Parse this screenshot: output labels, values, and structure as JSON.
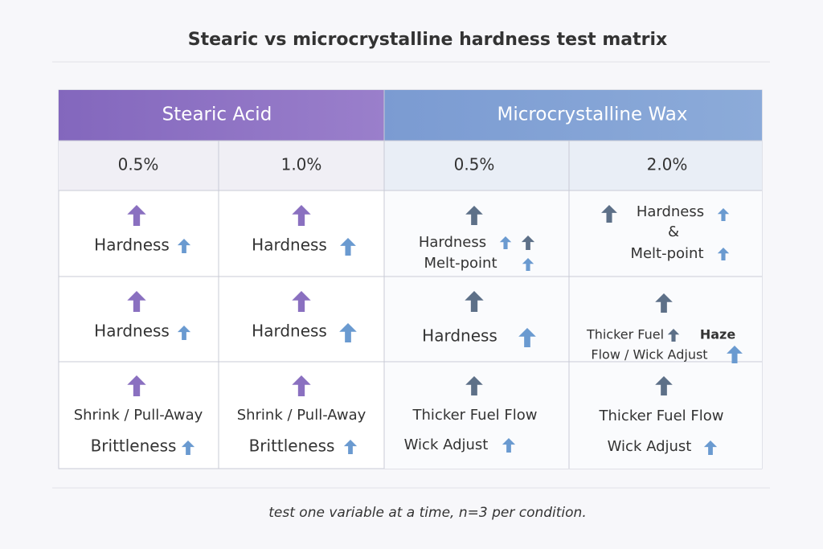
{
  "header": {
    "title": "Stearic vs microcrystalline hardness test matrix"
  },
  "table": {
    "groups": [
      "Stearic Acid",
      "Microcrystalline Wax"
    ],
    "columns": [
      "0.5%",
      "1.0%",
      "0.5%",
      "2.0%"
    ],
    "rows": [
      [
        [
          "Hardness"
        ],
        [
          "Hardness"
        ],
        [
          "Hardness",
          "Melt-point"
        ],
        [
          "Hardness",
          "&",
          "Melt-point"
        ]
      ],
      [
        [
          "Hardness"
        ],
        [
          "Hardness"
        ],
        [
          "Hardness"
        ],
        [
          "Thicker Fuel",
          "Haze",
          "Flow / Wick Adjust"
        ]
      ],
      [
        [
          "Shrink / Pull-Away",
          "Brittleness"
        ],
        [
          "Shrink / Pull-Away",
          "Brittleness"
        ],
        [
          "Thicker Fuel Flow",
          "Wick Adjust"
        ],
        [
          "Thicker Fuel Flow",
          "Wick Adjust"
        ]
      ]
    ]
  },
  "footer": {
    "note": "test one variable at a time, n=3 per condition."
  }
}
